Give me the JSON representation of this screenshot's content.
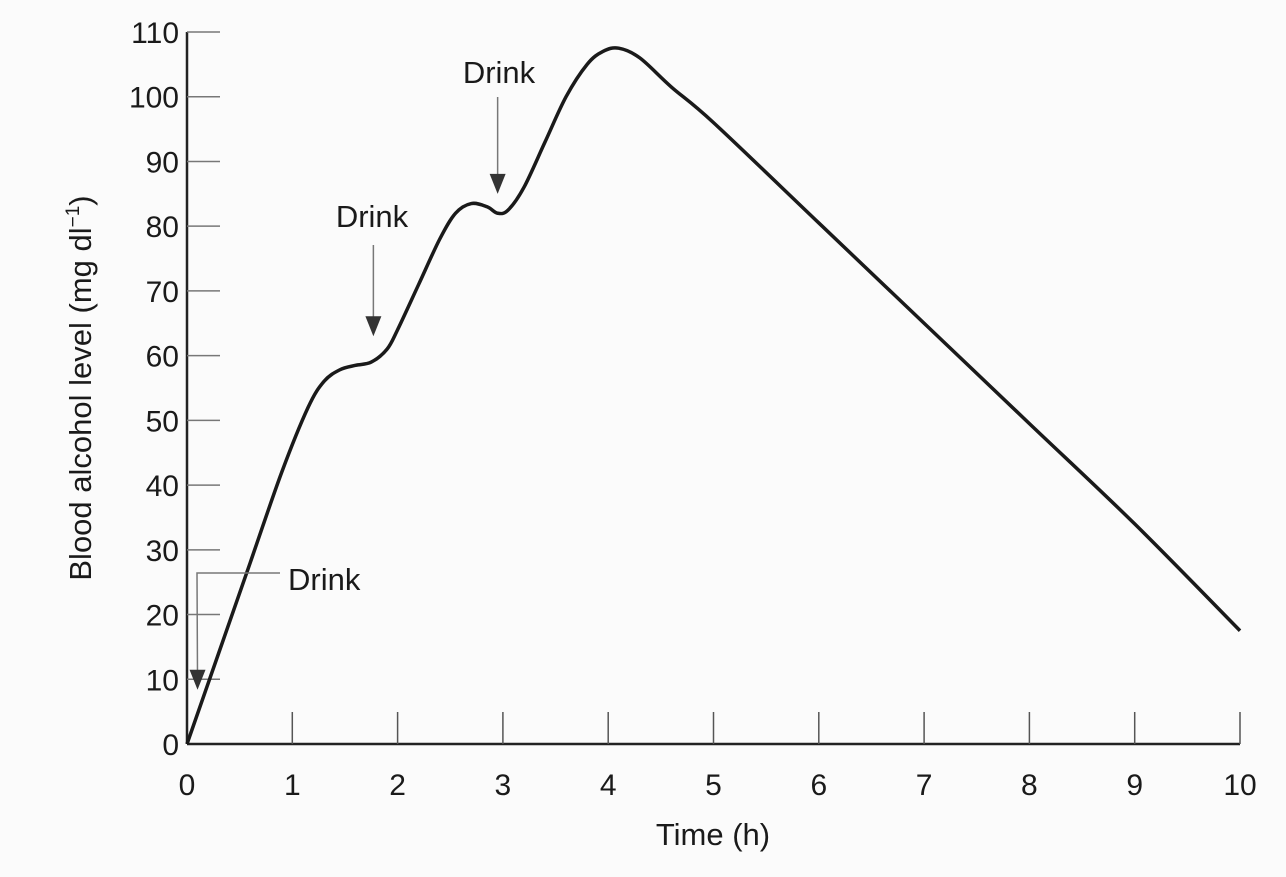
{
  "chart_data": {
    "type": "line",
    "title": "",
    "xlabel": "Time (h)",
    "ylabel": "Blood alcohol level (mg dl",
    "ylabel_superscript": "−1",
    "ylabel_close": ")",
    "xlim": [
      0,
      10
    ],
    "ylim": [
      0,
      110
    ],
    "xticks": [
      0,
      1,
      2,
      3,
      4,
      5,
      6,
      7,
      8,
      9,
      10
    ],
    "yticks": [
      0,
      10,
      20,
      30,
      40,
      50,
      60,
      70,
      80,
      90,
      100,
      110
    ],
    "grid": false,
    "line_color": "#1a1a1a",
    "series": [
      {
        "x": [
          0,
          0.3,
          0.6,
          0.9,
          1.15,
          1.3,
          1.45,
          1.6,
          1.75,
          1.9,
          2.0,
          2.2,
          2.4,
          2.55,
          2.7,
          2.85,
          2.95,
          3.05,
          3.2,
          3.4,
          3.6,
          3.8,
          3.95,
          4.1,
          4.3,
          4.6,
          5,
          6,
          7,
          8,
          9,
          10
        ],
        "y": [
          0,
          14,
          28,
          42,
          52,
          56,
          57.8,
          58.5,
          59,
          61,
          64,
          71,
          78,
          82,
          83.5,
          83,
          82,
          82.5,
          86,
          93,
          100,
          105,
          107,
          107.5,
          106,
          101.5,
          96,
          80.5,
          65,
          49.5,
          34,
          17.5
        ]
      }
    ],
    "annotations": [
      {
        "text": "Drink",
        "x": 0.1,
        "y": 9
      },
      {
        "text": "Drink",
        "x": 1.77,
        "y": 63
      },
      {
        "text": "Drink",
        "x": 2.95,
        "y": 85
      }
    ]
  }
}
